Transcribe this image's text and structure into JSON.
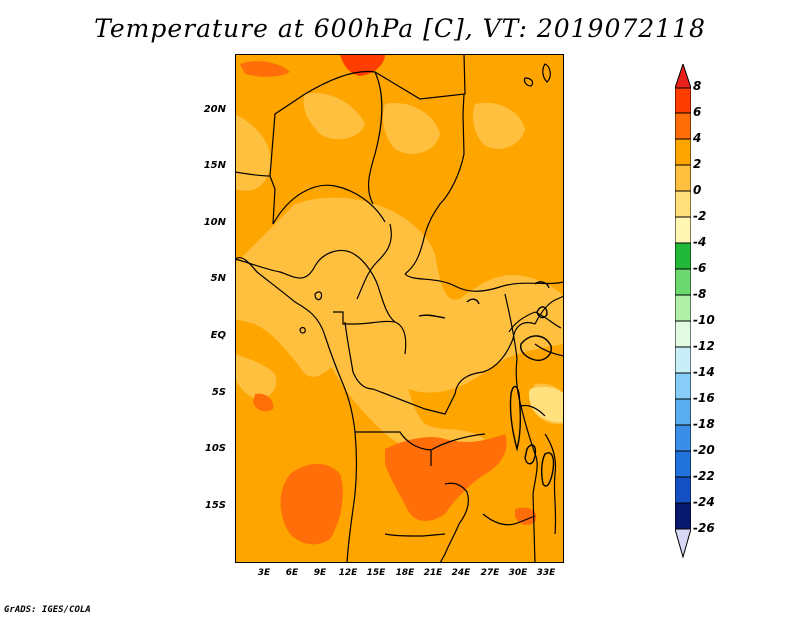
{
  "title": "Temperature at 600hPa [C], VT: 2019072118",
  "footer": "GrADS: IGES/COLA",
  "map": {
    "lat_labels": [
      "20N",
      "15N",
      "10N",
      "5N",
      "EQ",
      "5S",
      "10S",
      "15S"
    ],
    "lon_labels": [
      "3E",
      "6E",
      "9E",
      "12E",
      "15E",
      "18E",
      "21E",
      "24E",
      "27E",
      "30E",
      "33E"
    ],
    "colors": {
      "class_2_4": "#ffa500",
      "class_0_2": "#ffc040",
      "class_minus2_0": "#ffe07c",
      "class_4_6": "#ff6e08",
      "class_6_8": "#ff3d00",
      "coastline": "#000000"
    }
  },
  "colorbar": {
    "labels": [
      "8",
      "6",
      "4",
      "2",
      "0",
      "-2",
      "-4",
      "-6",
      "-8",
      "-10",
      "-12",
      "-14",
      "-16",
      "-18",
      "-20",
      "-22",
      "-24",
      "-26"
    ],
    "colors": [
      "#e8221a",
      "#ff3d00",
      "#ff6e08",
      "#ffa500",
      "#ffc040",
      "#ffe07c",
      "#fff6b2",
      "#22b83a",
      "#6cd870",
      "#b0f0a8",
      "#e2fae2",
      "#c8eef8",
      "#88cdf7",
      "#5aaef0",
      "#3b8ee8",
      "#2272db",
      "#1450c2",
      "#0c2f98",
      "#08186c",
      "#d8d8f6"
    ]
  }
}
